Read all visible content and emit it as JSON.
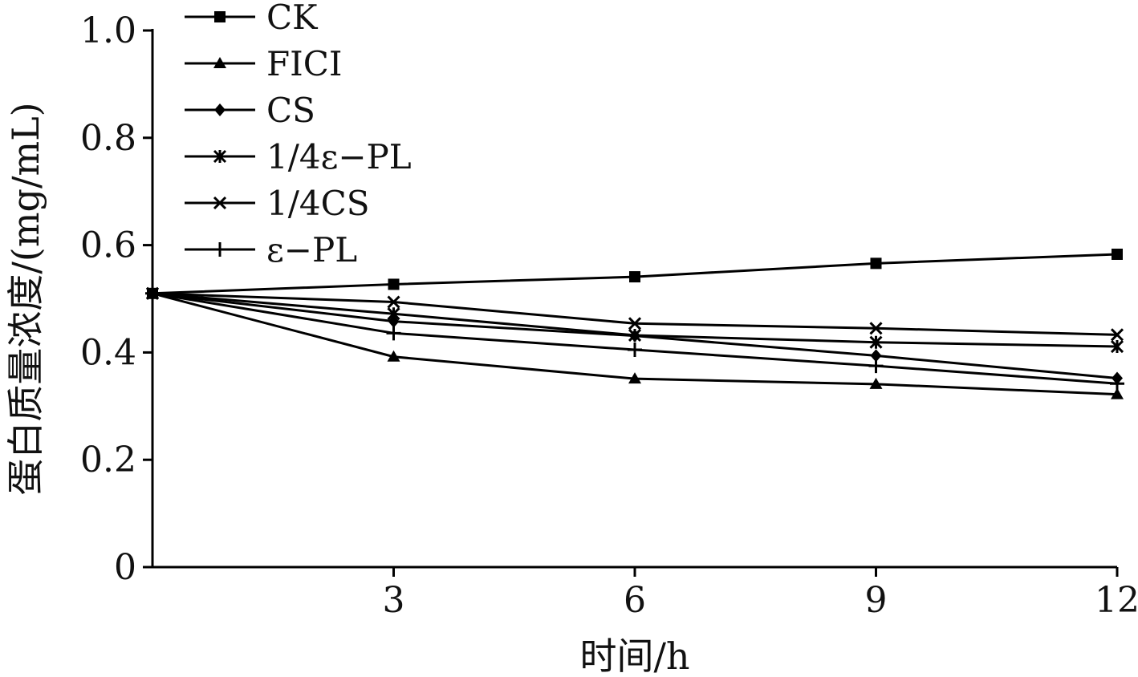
{
  "chart_data": {
    "type": "line",
    "x": [
      0,
      3,
      6,
      9,
      12
    ],
    "x_ticks": [
      "3",
      "6",
      "9",
      "12"
    ],
    "x_tick_values": [
      3,
      6,
      9,
      12
    ],
    "xlim": [
      0,
      12
    ],
    "ylim": [
      0,
      1.0
    ],
    "y_ticks": [
      "0",
      "0.2",
      "0.4",
      "0.6",
      "0.8",
      "1.0"
    ],
    "y_tick_values": [
      0,
      0.2,
      0.4,
      0.6,
      0.8,
      1.0
    ],
    "xlabel": "时间/h",
    "ylabel": "蛋白质量浓度/(mg/mL)",
    "grid": false,
    "legend_position": "top-left",
    "series": [
      {
        "name": "CK",
        "marker": "square",
        "color": "#000000",
        "values": [
          0.51,
          0.527,
          0.541,
          0.566,
          0.583
        ]
      },
      {
        "name": "FICI",
        "marker": "triangle",
        "color": "#000000",
        "values": [
          0.51,
          0.392,
          0.351,
          0.341,
          0.322
        ]
      },
      {
        "name": "CS",
        "marker": "diamond",
        "color": "#000000",
        "values": [
          0.51,
          0.458,
          0.431,
          0.394,
          0.352
        ]
      },
      {
        "name": "1/4ε−PL",
        "marker": "star",
        "color": "#000000",
        "values": [
          0.51,
          0.472,
          0.432,
          0.419,
          0.411
        ]
      },
      {
        "name": "1/4CS",
        "marker": "x",
        "color": "#000000",
        "values": [
          0.51,
          0.494,
          0.454,
          0.445,
          0.433
        ]
      },
      {
        "name": "ε−PL",
        "marker": "plus",
        "color": "#000000",
        "values": [
          0.51,
          0.436,
          0.405,
          0.375,
          0.342
        ]
      }
    ]
  }
}
